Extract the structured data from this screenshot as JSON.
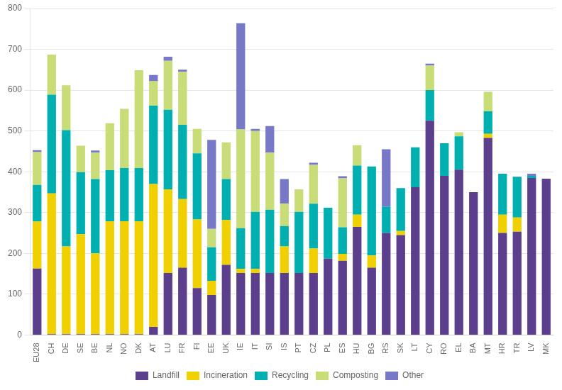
{
  "chart_data": {
    "type": "bar",
    "stacked": true,
    "categories": [
      "EU28",
      "CH",
      "DE",
      "SE",
      "BE",
      "NL",
      "NO",
      "DK",
      "AT",
      "LU",
      "FR",
      "FI",
      "EE",
      "UK",
      "IE",
      "IT",
      "SI",
      "IS",
      "PT",
      "CZ",
      "PL",
      "ES",
      "HU",
      "BG",
      "RS",
      "SK",
      "LT",
      "CY",
      "RO",
      "EL",
      "BA",
      "MT",
      "HR",
      "TR",
      "LV",
      "MK"
    ],
    "series": [
      {
        "name": "Landfill",
        "color": "#5b3e8c",
        "values": [
          163,
          2,
          2,
          2,
          2,
          2,
          2,
          2,
          20,
          152,
          165,
          115,
          98,
          172,
          152,
          152,
          152,
          152,
          152,
          152,
          187,
          182,
          265,
          165,
          250,
          245,
          362,
          525,
          390,
          405,
          350,
          483,
          250,
          253,
          385,
          383
        ]
      },
      {
        "name": "Incineration",
        "color": "#f0d000",
        "values": [
          115,
          345,
          215,
          245,
          198,
          277,
          277,
          277,
          350,
          205,
          168,
          168,
          35,
          110,
          10,
          10,
          0,
          65,
          0,
          60,
          0,
          17,
          30,
          30,
          0,
          10,
          0,
          0,
          0,
          0,
          0,
          10,
          45,
          35,
          0,
          0
        ]
      },
      {
        "name": "Recycling",
        "color": "#00b0b0",
        "values": [
          90,
          242,
          285,
          152,
          182,
          125,
          130,
          130,
          192,
          195,
          182,
          162,
          82,
          100,
          100,
          140,
          155,
          50,
          150,
          110,
          125,
          65,
          120,
          218,
          65,
          105,
          98,
          75,
          80,
          82,
          0,
          55,
          100,
          100,
          5,
          0
        ]
      },
      {
        "name": "Composting",
        "color": "#c8dc78",
        "values": [
          80,
          98,
          110,
          65,
          65,
          115,
          145,
          240,
          60,
          120,
          130,
          60,
          45,
          90,
          242,
          198,
          140,
          55,
          55,
          95,
          0,
          120,
          50,
          0,
          0,
          0,
          0,
          60,
          0,
          10,
          0,
          48,
          0,
          0,
          0,
          0
        ]
      },
      {
        "name": "Other",
        "color": "#7878c8",
        "values": [
          5,
          0,
          0,
          0,
          5,
          0,
          0,
          0,
          15,
          10,
          5,
          0,
          218,
          0,
          260,
          5,
          65,
          60,
          0,
          5,
          0,
          5,
          0,
          0,
          140,
          0,
          0,
          5,
          0,
          0,
          0,
          0,
          0,
          0,
          5,
          0
        ]
      }
    ],
    "ylim": [
      0,
      800
    ],
    "yticks": [
      0,
      100,
      200,
      300,
      400,
      500,
      600,
      700,
      800
    ],
    "grid": true,
    "legend": "bottom"
  }
}
